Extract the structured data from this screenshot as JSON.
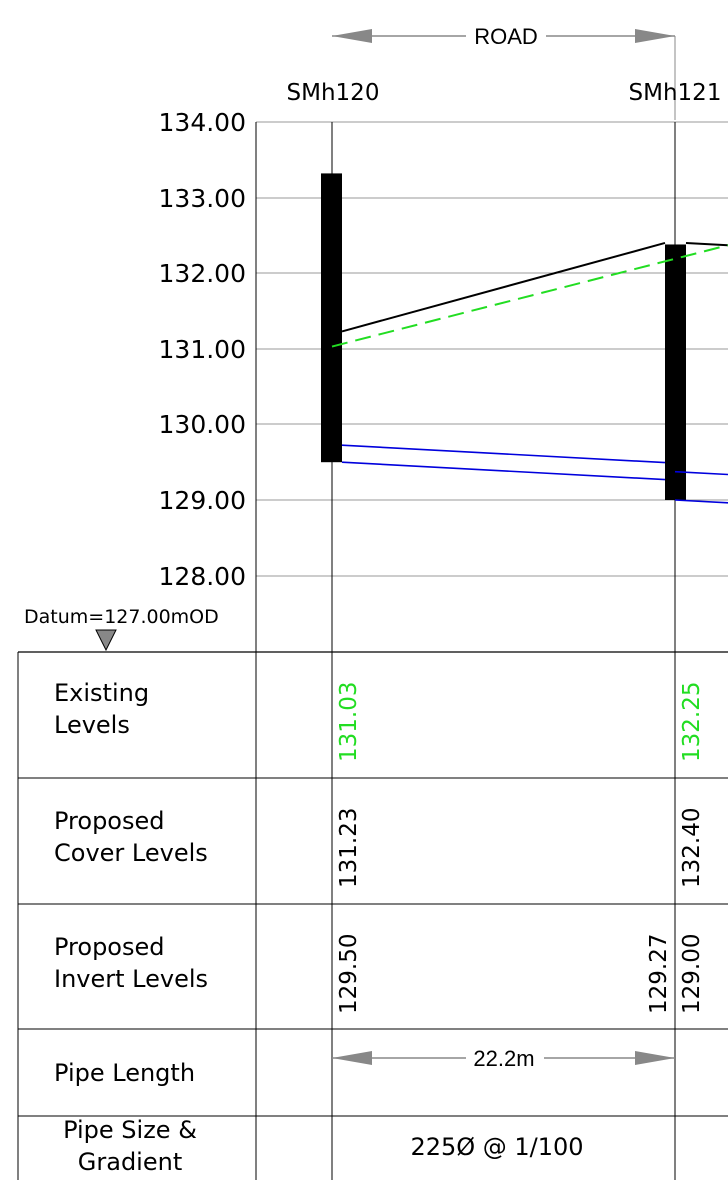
{
  "drawing": {
    "road_label": "ROAD",
    "datum_label": "Datum=127.00mOD",
    "y_axis": {
      "range": [
        127.0,
        134.0
      ],
      "tick_labels": [
        "134.00",
        "133.00",
        "132.00",
        "131.00",
        "130.00",
        "129.00",
        "128.00"
      ]
    },
    "manholes": [
      {
        "name": "SMh120"
      },
      {
        "name": "SMh121"
      }
    ],
    "levels": {
      "SMh120": {
        "existing": 131.03,
        "cover": 131.23,
        "invert": 129.5,
        "chamber_bottom": 129.5
      },
      "SMh121": {
        "existing": 132.25,
        "cover": 132.4,
        "invert_in": 129.27,
        "invert_out": 129.0,
        "chamber_bottom": 129.0
      }
    },
    "pipe": {
      "size": 225,
      "gradient": "1/100",
      "length_m": 22.2
    },
    "colors": {
      "existing_ground": "#22dd22",
      "proposed_surface": "#000000",
      "pipe": "#0000dd",
      "grid": "#999999"
    }
  },
  "table": {
    "rows": [
      {
        "label_lines": [
          "Existing",
          "Levels"
        ],
        "values": [
          "131.03",
          "132.25"
        ],
        "color": "#22dd22"
      },
      {
        "label_lines": [
          "Proposed",
          "Cover Levels"
        ],
        "values": [
          "131.23",
          "132.40"
        ],
        "color": "#000000"
      },
      {
        "label_lines": [
          "Proposed",
          "Invert Levels"
        ],
        "values": [
          "129.50",
          "129.27",
          "129.00"
        ],
        "color": "#000000"
      },
      {
        "label_lines": [
          "Pipe Length"
        ],
        "values": [
          "22.2m"
        ],
        "color": "#000000"
      },
      {
        "label_lines": [
          "Pipe Size &",
          "Gradient"
        ],
        "values": [
          "225Ø @ 1/100"
        ],
        "color": "#000000"
      }
    ]
  }
}
